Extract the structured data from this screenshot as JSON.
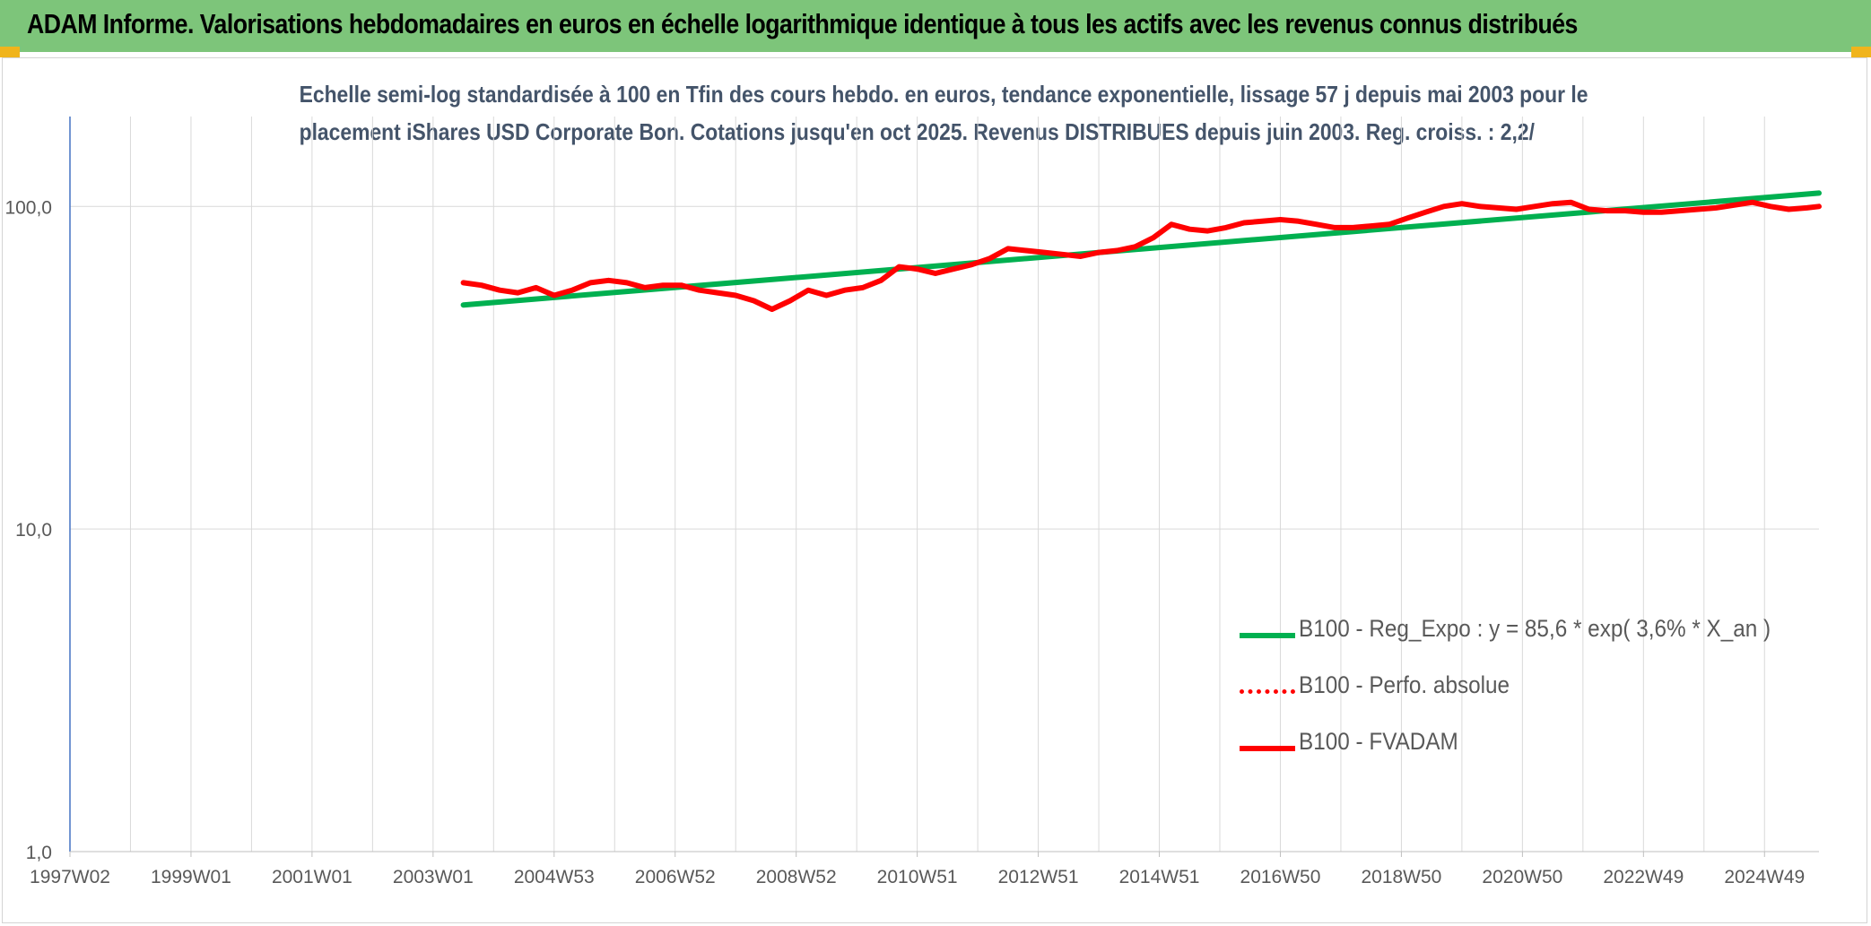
{
  "header": {
    "title": "ADAM Informe. Valorisations hebdomadaires en euros en échelle logarithmique identique à tous les actifs avec les revenus connus distribués"
  },
  "chart_data": {
    "type": "line",
    "title_lines": [
      "Echelle semi-log standardisée à 100 en Tfin des cours hebdo. en euros, tendance exponentielle, lissage 57 j depuis mai 2003 pour le",
      "placement iShares USD Corporate Bon. Cotations jusqu'en oct 2025. Revenus DISTRIBUES depuis juin 2003. Reg. croiss. : 2,2/"
    ],
    "y_scale": "log",
    "ylim": [
      1,
      190
    ],
    "xlim": [
      1997.0,
      2025.9
    ],
    "y_ticks": [
      {
        "value": 1,
        "label": "1,0"
      },
      {
        "value": 10,
        "label": "10,0"
      },
      {
        "value": 100,
        "label": "100,0"
      }
    ],
    "x_ticks": [
      {
        "value": 1997.0,
        "label": "1997W02"
      },
      {
        "value": 1999.0,
        "label": "1999W01"
      },
      {
        "value": 2001.0,
        "label": "2001W01"
      },
      {
        "value": 2003.0,
        "label": "2003W01"
      },
      {
        "value": 2005.0,
        "label": "2004W53"
      },
      {
        "value": 2007.0,
        "label": "2006W52"
      },
      {
        "value": 2009.0,
        "label": "2008W52"
      },
      {
        "value": 2011.0,
        "label": "2010W51"
      },
      {
        "value": 2013.0,
        "label": "2012W51"
      },
      {
        "value": 2015.0,
        "label": "2014W51"
      },
      {
        "value": 2017.0,
        "label": "2016W50"
      },
      {
        "value": 2019.0,
        "label": "2018W50"
      },
      {
        "value": 2021.0,
        "label": "2020W50"
      },
      {
        "value": 2023.0,
        "label": "2022W49"
      },
      {
        "value": 2025.0,
        "label": "2024W49"
      }
    ],
    "grid": "vertical and horizontal",
    "legend_position": "right",
    "series": [
      {
        "name": "B100 - Reg_Expo : y = 85,6 * exp( 3,6% *  X_an )",
        "color": "#00b050",
        "style": "solid",
        "x": [
          2003.5,
          2025.9
        ],
        "y": [
          49.5,
          110.0
        ]
      },
      {
        "name": "B100 - Perfo. absolue",
        "color": "#ff0000",
        "style": "dotted",
        "x": [],
        "y": []
      },
      {
        "name": "B100 - FVADAM",
        "color": "#ff0000",
        "style": "solid",
        "x": [
          2003.5,
          2003.8,
          2004.1,
          2004.4,
          2004.7,
          2005.0,
          2005.3,
          2005.6,
          2005.9,
          2006.2,
          2006.5,
          2006.8,
          2007.1,
          2007.4,
          2007.7,
          2008.0,
          2008.3,
          2008.6,
          2008.9,
          2009.2,
          2009.5,
          2009.8,
          2010.1,
          2010.4,
          2010.7,
          2011.0,
          2011.3,
          2011.6,
          2011.9,
          2012.2,
          2012.5,
          2012.8,
          2013.1,
          2013.4,
          2013.7,
          2014.0,
          2014.3,
          2014.6,
          2014.9,
          2015.2,
          2015.5,
          2015.8,
          2016.1,
          2016.4,
          2016.7,
          2017.0,
          2017.3,
          2017.6,
          2017.9,
          2018.2,
          2018.5,
          2018.8,
          2019.1,
          2019.4,
          2019.7,
          2020.0,
          2020.3,
          2020.6,
          2020.9,
          2021.2,
          2021.5,
          2021.8,
          2022.1,
          2022.4,
          2022.7,
          2023.0,
          2023.3,
          2023.6,
          2023.9,
          2024.2,
          2024.5,
          2024.8,
          2025.1,
          2025.4,
          2025.7,
          2025.9
        ],
        "y": [
          58,
          57,
          55,
          54,
          56,
          53,
          55,
          58,
          59,
          58,
          56,
          57,
          57,
          55,
          54,
          53,
          51,
          48,
          51,
          55,
          53,
          55,
          56,
          59,
          65,
          64,
          62,
          64,
          66,
          69,
          74,
          73,
          72,
          71,
          70,
          72,
          73,
          75,
          80,
          88,
          85,
          84,
          86,
          89,
          90,
          91,
          90,
          88,
          86,
          86,
          87,
          88,
          92,
          96,
          100,
          102,
          100,
          99,
          98,
          100,
          102,
          103,
          98,
          97,
          97,
          96,
          96,
          97,
          98,
          99,
          101,
          103,
          100,
          98,
          99,
          100
        ]
      }
    ]
  }
}
